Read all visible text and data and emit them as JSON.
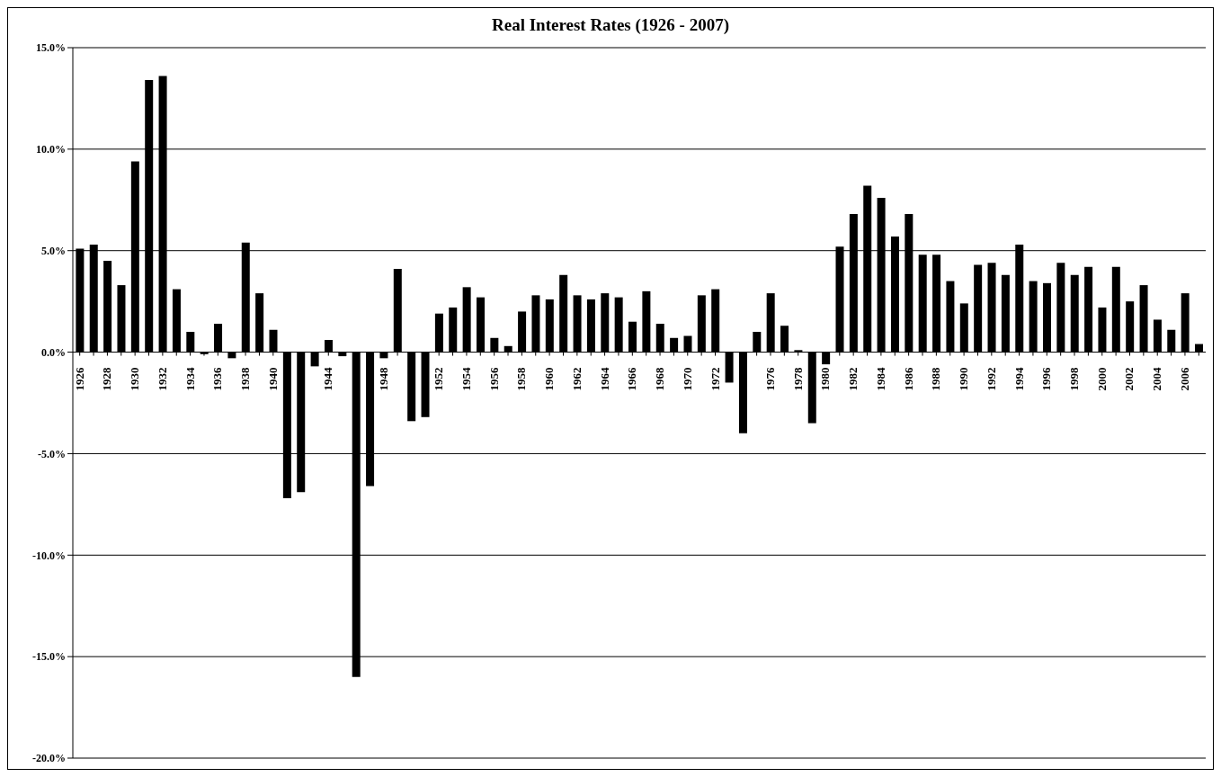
{
  "chart_data": {
    "type": "bar",
    "title": "Real Interest Rates (1926 - 2007)",
    "categories": [
      "1926",
      null,
      "1928",
      null,
      "1930",
      null,
      "1932",
      null,
      "1934",
      null,
      "1936",
      null,
      "1938",
      null,
      "1940",
      null,
      null,
      null,
      "1944",
      null,
      null,
      null,
      "1948",
      null,
      null,
      null,
      "1952",
      null,
      "1954",
      null,
      "1956",
      null,
      "1958",
      null,
      "1960",
      null,
      "1962",
      null,
      "1964",
      null,
      "1966",
      null,
      "1968",
      null,
      "1970",
      null,
      "1972",
      null,
      null,
      null,
      "1976",
      null,
      "1978",
      null,
      "1980",
      null,
      "1982",
      null,
      "1984",
      null,
      "1986",
      null,
      "1988",
      null,
      "1990",
      null,
      "1992",
      null,
      "1994",
      null,
      "1996",
      null,
      "1998",
      null,
      "2000",
      null,
      "2002",
      null,
      "2004",
      null,
      "2006",
      null
    ],
    "values": [
      5.1,
      5.3,
      4.5,
      3.3,
      9.4,
      13.4,
      13.6,
      3.1,
      1.0,
      -0.1,
      1.4,
      -0.3,
      5.4,
      2.9,
      1.1,
      -7.2,
      -6.9,
      -0.7,
      0.6,
      -0.2,
      -16.0,
      -6.6,
      -0.3,
      4.1,
      -3.4,
      -3.2,
      1.9,
      2.2,
      3.2,
      2.7,
      0.7,
      0.3,
      2.0,
      2.8,
      2.6,
      3.8,
      2.8,
      2.6,
      2.9,
      2.7,
      1.5,
      3.0,
      1.4,
      0.7,
      0.8,
      2.8,
      3.1,
      -1.5,
      -4.0,
      1.0,
      2.9,
      1.3,
      0.1,
      -3.5,
      -0.6,
      5.2,
      6.8,
      8.2,
      7.6,
      5.7,
      6.8,
      4.8,
      4.8,
      3.5,
      2.4,
      4.3,
      4.4,
      3.8,
      5.3,
      3.5,
      3.4,
      4.4,
      3.8,
      4.2,
      2.2,
      4.2,
      2.5,
      3.3,
      1.6,
      1.1,
      2.9,
      0.4
    ],
    "color": "#000000",
    "ylim": [
      -20,
      15
    ],
    "yticks": [
      {
        "value": -20,
        "label": "-20.0%"
      },
      {
        "value": -15,
        "label": "-15.0%"
      },
      {
        "value": -10,
        "label": "-10.0%"
      },
      {
        "value": -5,
        "label": "-5.0%"
      },
      {
        "value": 0,
        "label": "0.0%"
      },
      {
        "value": 5,
        "label": "5.0%"
      },
      {
        "value": 10,
        "label": "10.0%"
      },
      {
        "value": 15,
        "label": "15.0%"
      }
    ],
    "grid": "y"
  }
}
